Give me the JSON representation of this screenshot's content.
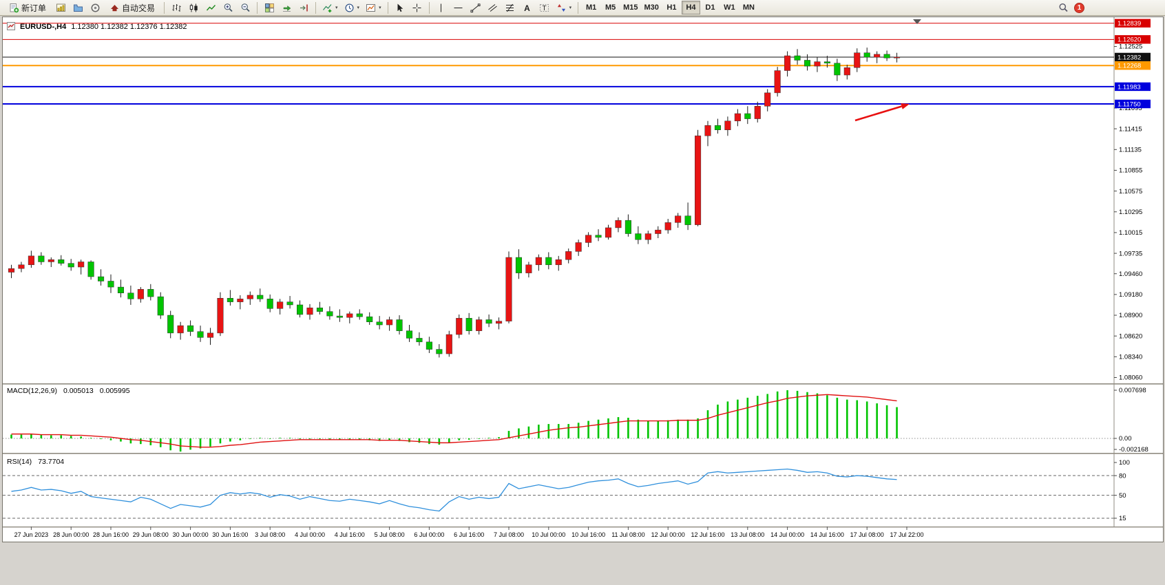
{
  "toolbar": {
    "new_order_label": "新订单",
    "auto_trading_label": "自动交易",
    "timeframes": [
      "M1",
      "M5",
      "M15",
      "M30",
      "H1",
      "H4",
      "D1",
      "W1",
      "MN"
    ],
    "active_timeframe": "H4",
    "notification_count": "1"
  },
  "chart": {
    "symbol_period": "EURUSD-,H4",
    "ohlc_text": "1.12380 1.12382 1.12376 1.12382"
  },
  "chart_data": {
    "type": "candlestick",
    "symbol": "EURUSD-",
    "timeframe": "H4",
    "colors": {
      "up": "#e81414",
      "down": "#00c400",
      "wick": "#1a1a1a"
    },
    "candles_ohlc": [
      [
        1.0948,
        1.0958,
        1.094,
        1.0953
      ],
      [
        1.0953,
        1.0962,
        1.0948,
        1.0958
      ],
      [
        1.0958,
        1.0977,
        1.0954,
        1.097
      ],
      [
        1.097,
        1.0975,
        1.0958,
        1.0962
      ],
      [
        1.0962,
        1.0968,
        1.0955,
        1.0965
      ],
      [
        1.0965,
        1.0971,
        1.0957,
        1.096
      ],
      [
        1.096,
        1.0966,
        1.095,
        1.0955
      ],
      [
        1.0955,
        1.0965,
        1.0945,
        1.0962
      ],
      [
        1.0962,
        1.0964,
        1.0938,
        1.0942
      ],
      [
        1.0942,
        1.0952,
        1.093,
        1.0936
      ],
      [
        1.0936,
        1.0945,
        1.092,
        1.0928
      ],
      [
        1.0928,
        1.0938,
        1.0914,
        1.092
      ],
      [
        1.092,
        1.093,
        1.0904,
        1.0912
      ],
      [
        1.0912,
        1.0928,
        1.0907,
        1.0925
      ],
      [
        1.0925,
        1.0932,
        1.091,
        1.0915
      ],
      [
        1.0915,
        1.0921,
        1.0885,
        1.089
      ],
      [
        1.089,
        1.0896,
        1.0859,
        1.0866
      ],
      [
        1.0866,
        1.0881,
        1.0857,
        1.0876
      ],
      [
        1.0876,
        1.0883,
        1.0862,
        1.0868
      ],
      [
        1.0868,
        1.0876,
        1.0854,
        1.086
      ],
      [
        1.086,
        1.0873,
        1.085,
        1.0866
      ],
      [
        1.0866,
        1.0921,
        1.0862,
        1.0913
      ],
      [
        1.0913,
        1.0924,
        1.0903,
        1.0908
      ],
      [
        1.0908,
        1.0917,
        1.0898,
        1.0912
      ],
      [
        1.0912,
        1.0922,
        1.0904,
        1.0917
      ],
      [
        1.0917,
        1.0926,
        1.0908,
        1.0912
      ],
      [
        1.0912,
        1.0918,
        1.0894,
        1.0899
      ],
      [
        1.0899,
        1.0912,
        1.0891,
        1.0908
      ],
      [
        1.0908,
        1.0916,
        1.0899,
        1.0904
      ],
      [
        1.0904,
        1.091,
        1.0887,
        1.0891
      ],
      [
        1.0891,
        1.0905,
        1.0884,
        1.09
      ],
      [
        1.09,
        1.0908,
        1.0891,
        1.0895
      ],
      [
        1.0895,
        1.0902,
        1.0884,
        1.0889
      ],
      [
        1.0889,
        1.0898,
        1.0881,
        1.0887
      ],
      [
        1.0887,
        1.0895,
        1.0879,
        1.0892
      ],
      [
        1.0892,
        1.0898,
        1.0884,
        1.0888
      ],
      [
        1.0888,
        1.0894,
        1.0877,
        1.0881
      ],
      [
        1.0881,
        1.0889,
        1.0871,
        1.0877
      ],
      [
        1.0877,
        1.0888,
        1.0869,
        1.0884
      ],
      [
        1.0884,
        1.089,
        1.0864,
        1.0869
      ],
      [
        1.0869,
        1.0877,
        1.0854,
        1.0859
      ],
      [
        1.0859,
        1.0867,
        1.0849,
        1.0854
      ],
      [
        1.0854,
        1.0861,
        1.0839,
        1.0844
      ],
      [
        1.0844,
        1.0851,
        1.0833,
        1.0838
      ],
      [
        1.0838,
        1.0869,
        1.0834,
        1.0864
      ],
      [
        1.0864,
        1.0891,
        1.0859,
        1.0886
      ],
      [
        1.0886,
        1.0893,
        1.0864,
        1.0869
      ],
      [
        1.0869,
        1.0888,
        1.0864,
        1.0884
      ],
      [
        1.0884,
        1.0891,
        1.0874,
        1.0879
      ],
      [
        1.0879,
        1.0887,
        1.0871,
        1.0882
      ],
      [
        1.0882,
        1.0976,
        1.0879,
        1.0968
      ],
      [
        1.0968,
        1.0979,
        1.0939,
        1.0947
      ],
      [
        1.0947,
        1.0962,
        1.0941,
        1.0958
      ],
      [
        1.0958,
        1.0972,
        1.095,
        1.0968
      ],
      [
        1.0968,
        1.0975,
        1.0952,
        1.0958
      ],
      [
        1.0958,
        1.097,
        1.095,
        1.0965
      ],
      [
        1.0965,
        1.098,
        1.096,
        1.0976
      ],
      [
        1.0976,
        1.0992,
        1.097,
        1.0988
      ],
      [
        1.0988,
        1.1002,
        1.0982,
        1.0998
      ],
      [
        1.0998,
        1.1006,
        1.099,
        1.0995
      ],
      [
        1.0995,
        1.1012,
        1.0992,
        1.1008
      ],
      [
        1.1008,
        1.1022,
        1.1002,
        1.1018
      ],
      [
        1.1018,
        1.1026,
        1.0996,
        1.1
      ],
      [
        1.1,
        1.101,
        1.0986,
        1.0992
      ],
      [
        1.0992,
        1.1004,
        1.0986,
        1.1
      ],
      [
        1.1,
        1.101,
        1.0994,
        1.1005
      ],
      [
        1.1005,
        1.102,
        1.1,
        1.1015
      ],
      [
        1.1015,
        1.1028,
        1.1008,
        1.1024
      ],
      [
        1.1024,
        1.1042,
        1.1005,
        1.1012
      ],
      [
        1.1012,
        1.114,
        1.101,
        1.1132
      ],
      [
        1.1132,
        1.1152,
        1.1118,
        1.1146
      ],
      [
        1.1146,
        1.1155,
        1.1135,
        1.114
      ],
      [
        1.114,
        1.1158,
        1.1132,
        1.1152
      ],
      [
        1.1152,
        1.1168,
        1.1145,
        1.1162
      ],
      [
        1.1162,
        1.1172,
        1.1148,
        1.1155
      ],
      [
        1.1155,
        1.1178,
        1.115,
        1.1172
      ],
      [
        1.1172,
        1.1195,
        1.1165,
        1.119
      ],
      [
        1.119,
        1.1225,
        1.1185,
        1.122
      ],
      [
        1.122,
        1.1246,
        1.1212,
        1.124
      ],
      [
        1.124,
        1.1249,
        1.1228,
        1.1234
      ],
      [
        1.1234,
        1.1242,
        1.122,
        1.1226
      ],
      [
        1.1226,
        1.1238,
        1.1218,
        1.1232
      ],
      [
        1.1232,
        1.124,
        1.1224,
        1.123
      ],
      [
        1.123,
        1.1236,
        1.1206,
        1.1214
      ],
      [
        1.1214,
        1.1228,
        1.1208,
        1.1224
      ],
      [
        1.1224,
        1.125,
        1.1218,
        1.1244
      ],
      [
        1.1244,
        1.1251,
        1.1232,
        1.1238
      ],
      [
        1.1238,
        1.1246,
        1.123,
        1.1242
      ],
      [
        1.1242,
        1.1247,
        1.1233,
        1.1237
      ],
      [
        1.1237,
        1.1244,
        1.1231,
        1.12382
      ]
    ],
    "time_labels": [
      "27 Jun 2023",
      "28 Jun 00:00",
      "28 Jun 16:00",
      "29 Jun 08:00",
      "30 Jun 00:00",
      "30 Jun 16:00",
      "3 Jul 08:00",
      "4 Jul 00:00",
      "4 Jul 16:00",
      "5 Jul 08:00",
      "6 Jul 00:00",
      "6 Jul 16:00",
      "7 Jul 08:00",
      "10 Jul 00:00",
      "10 Jul 16:00",
      "11 Jul 08:00",
      "12 Jul 00:00",
      "12 Jul 16:00",
      "13 Jul 08:00",
      "14 Jul 00:00",
      "14 Jul 16:00",
      "17 Jul 08:00",
      "17 Jul 22:00"
    ],
    "price_axis_ticks": [
      "1.12525",
      "1.11695",
      "1.11415",
      "1.11135",
      "1.10855",
      "1.10575",
      "1.10295",
      "1.10015",
      "1.09735",
      "1.09460",
      "1.09180",
      "1.08900",
      "1.08620",
      "1.08340",
      "1.08060"
    ],
    "price_line_labels": [
      {
        "text": "1.12839",
        "price": 1.12839,
        "bg": "#d80000",
        "width": 1
      },
      {
        "text": "1.12620",
        "price": 1.1262,
        "bg": "#d80000",
        "width": 1
      },
      {
        "text": "1.12382",
        "price": 1.12382,
        "bg": "#111111",
        "width": 1
      },
      {
        "text": "1.12268",
        "price": 1.12268,
        "bg": "#ff9900",
        "width": 2
      },
      {
        "text": "1.11983",
        "price": 1.11983,
        "bg": "#0000dd",
        "width": 2
      },
      {
        "text": "1.11750",
        "price": 1.1175,
        "bg": "#0000dd",
        "width": 2
      }
    ],
    "trend_arrow": {
      "color": "#e81010",
      "from": [
        1238,
        150
      ],
      "to": [
        1317,
        126
      ]
    },
    "macd": {
      "name": "MACD(12,26,9)",
      "value_main": "0.005013",
      "value_signal": "0.005995",
      "colors": {
        "histogram": "#00c400",
        "signal": "#e01010"
      },
      "scale": [
        {
          "text": "0.007698",
          "v": 0.007698
        },
        {
          "text": "0.00",
          "v": 0
        },
        {
          "text": "-0.002168",
          "v": -0.002168
        }
      ],
      "main": [
        0.0006,
        0.0006,
        0.0007,
        0.0006,
        0.0005,
        0.0005,
        0.0004,
        0.0003,
        0.0001,
        -0.0001,
        -0.0003,
        -0.0005,
        -0.0008,
        -0.0009,
        -0.0011,
        -0.0014,
        -0.0019,
        -0.0021,
        -0.0018,
        -0.0016,
        -0.0013,
        -0.0008,
        -0.0005,
        -0.0003,
        0.0,
        0.0001,
        0.0,
        0.0001,
        0.0001,
        -0.0001,
        -0.0001,
        -0.0001,
        -0.0002,
        -0.0002,
        -0.0002,
        -0.0002,
        -0.0003,
        -0.0004,
        -0.0003,
        -0.0004,
        -0.0006,
        -0.0007,
        -0.0009,
        -0.001,
        -0.0007,
        -0.0003,
        -0.0002,
        0.0,
        0.0001,
        0.0002,
        0.0012,
        0.0016,
        0.0019,
        0.0022,
        0.0023,
        0.0023,
        0.0023,
        0.0025,
        0.0028,
        0.003,
        0.0032,
        0.0034,
        0.0033,
        0.003,
        0.0028,
        0.0028,
        0.0029,
        0.003,
        0.003,
        0.0032,
        0.0045,
        0.0054,
        0.0059,
        0.0062,
        0.0065,
        0.0068,
        0.0071,
        0.0075,
        0.0077,
        0.0076,
        0.0074,
        0.0072,
        0.0069,
        0.0065,
        0.0062,
        0.0061,
        0.0059,
        0.0056,
        0.0053,
        0.005
      ],
      "signal": [
        0.0007,
        0.0007,
        0.0007,
        0.0006,
        0.0006,
        0.0006,
        0.0005,
        0.0005,
        0.0004,
        0.0003,
        0.0002,
        0.0,
        -0.0002,
        -0.0003,
        -0.0005,
        -0.0007,
        -0.0009,
        -0.0012,
        -0.0013,
        -0.0014,
        -0.0014,
        -0.0013,
        -0.0011,
        -0.001,
        -0.0008,
        -0.0006,
        -0.0005,
        -0.0004,
        -0.0003,
        -0.0002,
        -0.0002,
        -0.0002,
        -0.0002,
        -0.0002,
        -0.0002,
        -0.0002,
        -0.0002,
        -0.0003,
        -0.0003,
        -0.0003,
        -0.0004,
        -0.0005,
        -0.0006,
        -0.0007,
        -0.0007,
        -0.0006,
        -0.0005,
        -0.0004,
        -0.0003,
        -0.0002,
        0.0001,
        0.0004,
        0.0007,
        0.001,
        0.0013,
        0.0015,
        0.0017,
        0.0018,
        0.002,
        0.0022,
        0.0024,
        0.0026,
        0.0028,
        0.0028,
        0.0028,
        0.0028,
        0.0028,
        0.0029,
        0.0029,
        0.0029,
        0.0032,
        0.0037,
        0.0041,
        0.0045,
        0.0049,
        0.0053,
        0.0057,
        0.006,
        0.0064,
        0.0066,
        0.0068,
        0.0069,
        0.007,
        0.0069,
        0.0068,
        0.0067,
        0.0066,
        0.0064,
        0.0062,
        0.006
      ]
    },
    "rsi": {
      "name": "RSI(14)",
      "value": "73.7704",
      "color": "#2e8fdc",
      "levels": [
        80,
        50,
        15
      ],
      "scale": [
        {
          "text": "100",
          "v": 100
        },
        {
          "text": "80",
          "v": 80
        },
        {
          "text": "50",
          "v": 50
        },
        {
          "text": "15",
          "v": 15
        }
      ],
      "values": [
        56,
        58,
        62,
        58,
        59,
        57,
        53,
        56,
        48,
        46,
        44,
        42,
        40,
        47,
        44,
        37,
        30,
        36,
        34,
        32,
        36,
        50,
        54,
        52,
        54,
        52,
        47,
        51,
        49,
        44,
        48,
        45,
        42,
        41,
        44,
        42,
        40,
        37,
        42,
        37,
        33,
        31,
        28,
        26,
        40,
        48,
        44,
        47,
        45,
        47,
        68,
        60,
        63,
        66,
        63,
        60,
        62,
        66,
        70,
        72,
        73,
        75,
        68,
        63,
        65,
        68,
        70,
        72,
        67,
        71,
        84,
        86,
        84,
        85,
        86,
        87,
        88,
        89,
        90,
        88,
        85,
        86,
        84,
        79,
        78,
        80,
        79,
        77,
        75,
        74
      ]
    }
  }
}
